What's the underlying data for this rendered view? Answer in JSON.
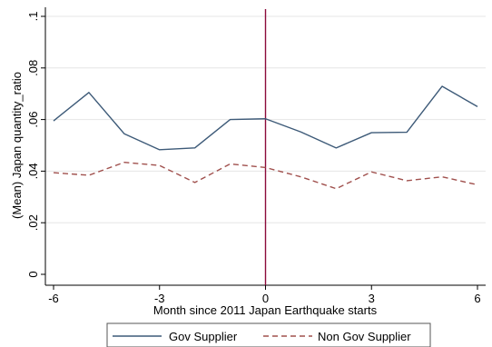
{
  "chart_data": {
    "type": "line",
    "xlabel": "Month since 2011 Japan Earthquake starts",
    "ylabel": "(Mean) Japan quantity_ratio",
    "xlim": [
      -6,
      6
    ],
    "ylim": [
      0,
      0.1
    ],
    "x_ticks": [
      -6,
      -3,
      0,
      3,
      6
    ],
    "x_tick_labels": [
      "-6",
      "-3",
      "0",
      "3",
      "6"
    ],
    "y_ticks": [
      0,
      0.02,
      0.04,
      0.06,
      0.08,
      0.1
    ],
    "y_tick_labels": [
      "0",
      ".02",
      ".04",
      ".06",
      ".08",
      ".1"
    ],
    "x": [
      -6,
      -5,
      -4,
      -3,
      -2,
      -1,
      0,
      1,
      2,
      3,
      4,
      5,
      6
    ],
    "series": [
      {
        "name": "Gov Supplier",
        "color": "#3d5a78",
        "style": "solid",
        "values": [
          0.0595,
          0.0705,
          0.0545,
          0.0483,
          0.049,
          0.06,
          0.0603,
          0.0552,
          0.049,
          0.0549,
          0.0551,
          0.0729,
          0.065
        ]
      },
      {
        "name": "Non Gov Supplier",
        "color": "#a0504d",
        "style": "dashed",
        "values": [
          0.0394,
          0.0384,
          0.0434,
          0.0422,
          0.0356,
          0.0428,
          0.0414,
          0.0378,
          0.0332,
          0.0397,
          0.0363,
          0.0378,
          0.0347
        ]
      }
    ],
    "reference_line": {
      "x": 0,
      "color": "#8b0a3a"
    },
    "grid": true,
    "legend_position": "bottom"
  }
}
